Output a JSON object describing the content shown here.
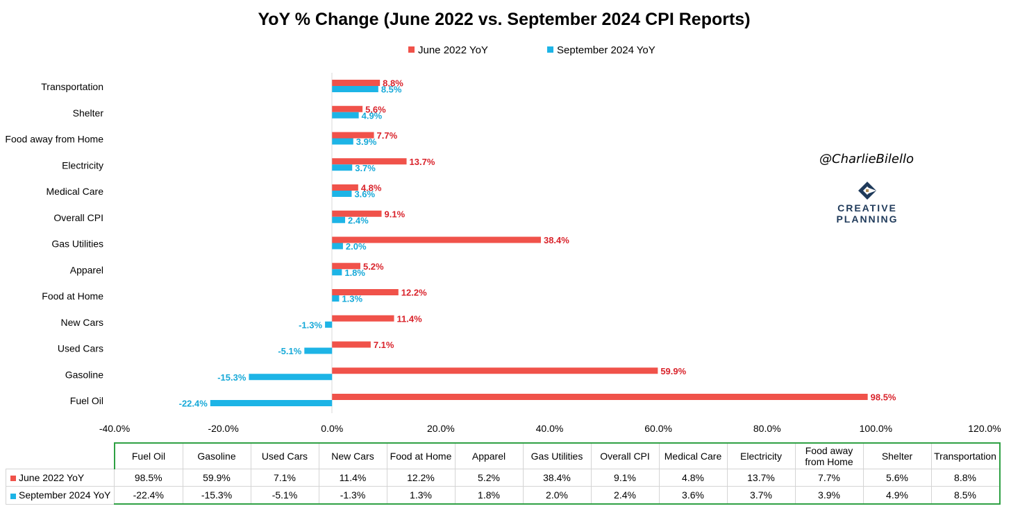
{
  "colors": {
    "series1": "#f0524a",
    "series2": "#1db4e6",
    "label1": "#d9232b",
    "label2": "#17a9d8",
    "table_border": "#2ea043"
  },
  "watermark": "@CharlieBilello",
  "brand": {
    "line1": "CREATIVE",
    "line2": "PLANNING"
  },
  "chart_data": {
    "type": "bar",
    "orientation": "horizontal",
    "title": "YoY % Change (June 2022 vs. September 2024 CPI Reports)",
    "xlabel": "",
    "ylabel": "",
    "xlim": [
      -40,
      120
    ],
    "grid": false,
    "legend_position": "top",
    "x_ticks": [
      "-40.0%",
      "-20.0%",
      "0.0%",
      "20.0%",
      "40.0%",
      "60.0%",
      "80.0%",
      "100.0%",
      "120.0%"
    ],
    "x_tick_values": [
      -40,
      -20,
      0,
      20,
      40,
      60,
      80,
      100,
      120
    ],
    "categories": [
      "Fuel Oil",
      "Gasoline",
      "Used Cars",
      "New Cars",
      "Food at Home",
      "Apparel",
      "Gas Utilities",
      "Overall CPI",
      "Medical Care",
      "Electricity",
      "Food away from Home",
      "Shelter",
      "Transportation"
    ],
    "table_headers": [
      [
        "Fuel Oil"
      ],
      [
        "Gasoline"
      ],
      [
        "Used Cars"
      ],
      [
        "New Cars"
      ],
      [
        "Food at Home"
      ],
      [
        "Apparel"
      ],
      [
        "Gas Utilities"
      ],
      [
        "Overall CPI"
      ],
      [
        "Medical Care"
      ],
      [
        "Electricity"
      ],
      [
        "Food away",
        "from Home"
      ],
      [
        "Shelter"
      ],
      [
        "Transportation"
      ]
    ],
    "series": [
      {
        "name": "June 2022 YoY",
        "values": [
          98.5,
          59.9,
          7.1,
          11.4,
          12.2,
          5.2,
          38.4,
          9.1,
          4.8,
          13.7,
          7.7,
          5.6,
          8.8
        ],
        "labels": [
          "98.5%",
          "59.9%",
          "7.1%",
          "11.4%",
          "12.2%",
          "5.2%",
          "38.4%",
          "9.1%",
          "4.8%",
          "13.7%",
          "7.7%",
          "5.6%",
          "8.8%"
        ]
      },
      {
        "name": "September 2024 YoY",
        "values": [
          -22.4,
          -15.3,
          -5.1,
          -1.3,
          1.3,
          1.8,
          2.0,
          2.4,
          3.6,
          3.7,
          3.9,
          4.9,
          8.5
        ],
        "labels": [
          "-22.4%",
          "-15.3%",
          "-5.1%",
          "-1.3%",
          "1.3%",
          "1.8%",
          "2.0%",
          "2.4%",
          "3.6%",
          "3.7%",
          "3.9%",
          "4.9%",
          "8.5%"
        ]
      }
    ]
  }
}
